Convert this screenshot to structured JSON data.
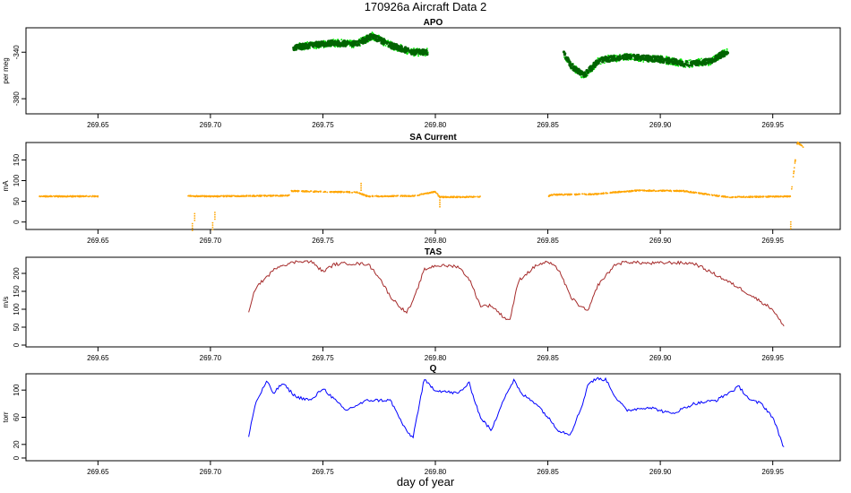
{
  "title": "170926a   Aircraft Data 2",
  "xlabel": "day of year",
  "chart_data": [
    {
      "type": "scatter",
      "title": "APO",
      "ylabel": "per meg",
      "xlim": [
        269.618,
        269.98
      ],
      "ylim": [
        -393,
        -319
      ],
      "xticks": [
        269.65,
        269.7,
        269.75,
        269.8,
        269.85,
        269.9,
        269.95
      ],
      "yticks": [
        -340,
        -380
      ],
      "series": [
        {
          "color": "#00ee00",
          "style": "raw",
          "x": [
            269.737,
            269.745,
            269.755,
            269.765,
            269.772,
            269.78,
            269.79,
            269.797,
            269.857,
            269.86,
            269.866,
            269.873,
            269.885,
            269.9,
            269.912,
            269.922,
            269.93
          ],
          "y": [
            -336,
            -334,
            -332,
            -333,
            -326,
            -334,
            -340,
            -340,
            -340,
            -351,
            -360,
            -347,
            -344,
            -346,
            -350,
            -348,
            -339
          ]
        },
        {
          "color": "#006400",
          "style": "average",
          "x": [
            269.737,
            269.745,
            269.755,
            269.765,
            269.772,
            269.78,
            269.79,
            269.797,
            269.857,
            269.86,
            269.866,
            269.873,
            269.885,
            269.9,
            269.912,
            269.922,
            269.93
          ],
          "y": [
            -336,
            -334,
            -332,
            -333,
            -326,
            -334,
            -340,
            -340,
            -340,
            -351,
            -360,
            -347,
            -344,
            -346,
            -350,
            -348,
            -339
          ]
        }
      ]
    },
    {
      "type": "scatter",
      "title": "SA Current",
      "ylabel": "mA",
      "xlim": [
        269.618,
        269.98
      ],
      "ylim": [
        -18,
        192
      ],
      "xticks": [
        269.65,
        269.7,
        269.75,
        269.8,
        269.85,
        269.9,
        269.95
      ],
      "yticks": [
        0,
        50,
        100,
        150
      ],
      "series": [
        {
          "color": "#ffa500",
          "x": [
            269.624,
            269.65,
            269.69,
            269.7,
            269.72,
            269.735,
            269.736,
            269.75,
            269.765,
            269.77,
            269.79,
            269.8,
            269.802,
            269.82,
            269.85,
            269.852,
            269.87,
            269.88,
            269.89,
            269.91,
            269.93,
            269.958,
            269.961,
            269.964
          ],
          "y": [
            62,
            62,
            63,
            62,
            63,
            64,
            75,
            73,
            72,
            62,
            63,
            73,
            60,
            61,
            62,
            66,
            67,
            72,
            76,
            75,
            60,
            62,
            192,
            180
          ],
          "outliers_x": [
            269.692,
            269.693,
            269.701,
            269.702,
            269.767,
            269.802,
            269.958
          ],
          "outliers_y": [
            -12,
            12,
            -10,
            15,
            85,
            45,
            -8
          ]
        }
      ]
    },
    {
      "type": "line",
      "title": "TAS",
      "ylabel": "m/s",
      "xlim": [
        269.618,
        269.98
      ],
      "ylim": [
        -5,
        245
      ],
      "xticks": [
        269.65,
        269.7,
        269.75,
        269.8,
        269.85,
        269.9,
        269.95
      ],
      "yticks": [
        0,
        50,
        100,
        150,
        200
      ],
      "series": [
        {
          "color": "#a52a2a",
          "x": [
            269.717,
            269.72,
            269.73,
            269.74,
            269.745,
            269.75,
            269.755,
            269.76,
            269.77,
            269.775,
            269.78,
            269.787,
            269.79,
            269.795,
            269.8,
            269.81,
            269.815,
            269.82,
            269.825,
            269.83,
            269.833,
            269.837,
            269.845,
            269.85,
            269.855,
            269.86,
            269.865,
            269.868,
            269.872,
            269.88,
            269.885,
            269.895,
            269.905,
            269.915,
            269.925,
            269.935,
            269.945,
            269.95,
            269.955
          ],
          "y": [
            88,
            160,
            220,
            235,
            232,
            205,
            225,
            228,
            226,
            190,
            135,
            90,
            120,
            210,
            222,
            220,
            185,
            110,
            110,
            80,
            68,
            180,
            223,
            232,
            210,
            135,
            105,
            95,
            165,
            225,
            232,
            228,
            230,
            228,
            195,
            160,
            120,
            100,
            50
          ]
        }
      ]
    },
    {
      "type": "line",
      "title": "Q",
      "ylabel": "torr",
      "xlim": [
        269.618,
        269.98
      ],
      "ylim": [
        -4,
        124
      ],
      "xticks": [
        269.65,
        269.7,
        269.75,
        269.8,
        269.85,
        269.9,
        269.95
      ],
      "yticks": [
        0,
        20,
        60,
        100
      ],
      "series": [
        {
          "color": "#0000ff",
          "x": [
            269.717,
            269.72,
            269.725,
            269.728,
            269.732,
            269.738,
            269.745,
            269.75,
            269.76,
            269.77,
            269.78,
            269.787,
            269.79,
            269.795,
            269.8,
            269.81,
            269.815,
            269.82,
            269.825,
            269.83,
            269.835,
            269.838,
            269.845,
            269.855,
            269.86,
            269.865,
            269.868,
            269.872,
            269.876,
            269.88,
            269.885,
            269.895,
            269.905,
            269.915,
            269.925,
            269.935,
            269.94,
            269.945,
            269.95,
            269.955
          ],
          "y": [
            33,
            80,
            113,
            95,
            110,
            90,
            85,
            103,
            70,
            85,
            85,
            40,
            30,
            115,
            100,
            95,
            110,
            60,
            40,
            85,
            115,
            95,
            80,
            40,
            35,
            75,
            110,
            117,
            115,
            90,
            70,
            75,
            65,
            80,
            85,
            105,
            85,
            80,
            60,
            15
          ]
        }
      ]
    }
  ]
}
